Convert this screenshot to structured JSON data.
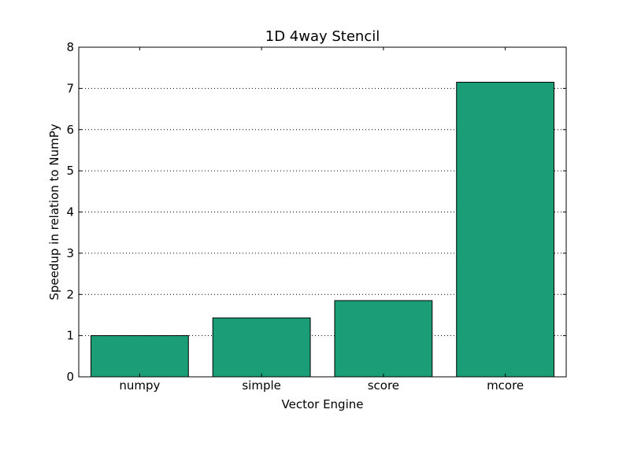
{
  "chart_data": {
    "type": "bar",
    "title": "1D 4way Stencil",
    "xlabel": "Vector Engine",
    "ylabel": "Speedup in relation to NumPy",
    "categories": [
      "numpy",
      "simple",
      "score",
      "mcore"
    ],
    "values": [
      1.0,
      1.43,
      1.85,
      7.15
    ],
    "ylim": [
      0,
      8
    ],
    "yticks": [
      "0",
      "1",
      "2",
      "3",
      "4",
      "5",
      "6",
      "7",
      "8"
    ],
    "grid": "horizontal-dotted",
    "bar_color": "#1b9e77",
    "edge_color": "#000000"
  }
}
